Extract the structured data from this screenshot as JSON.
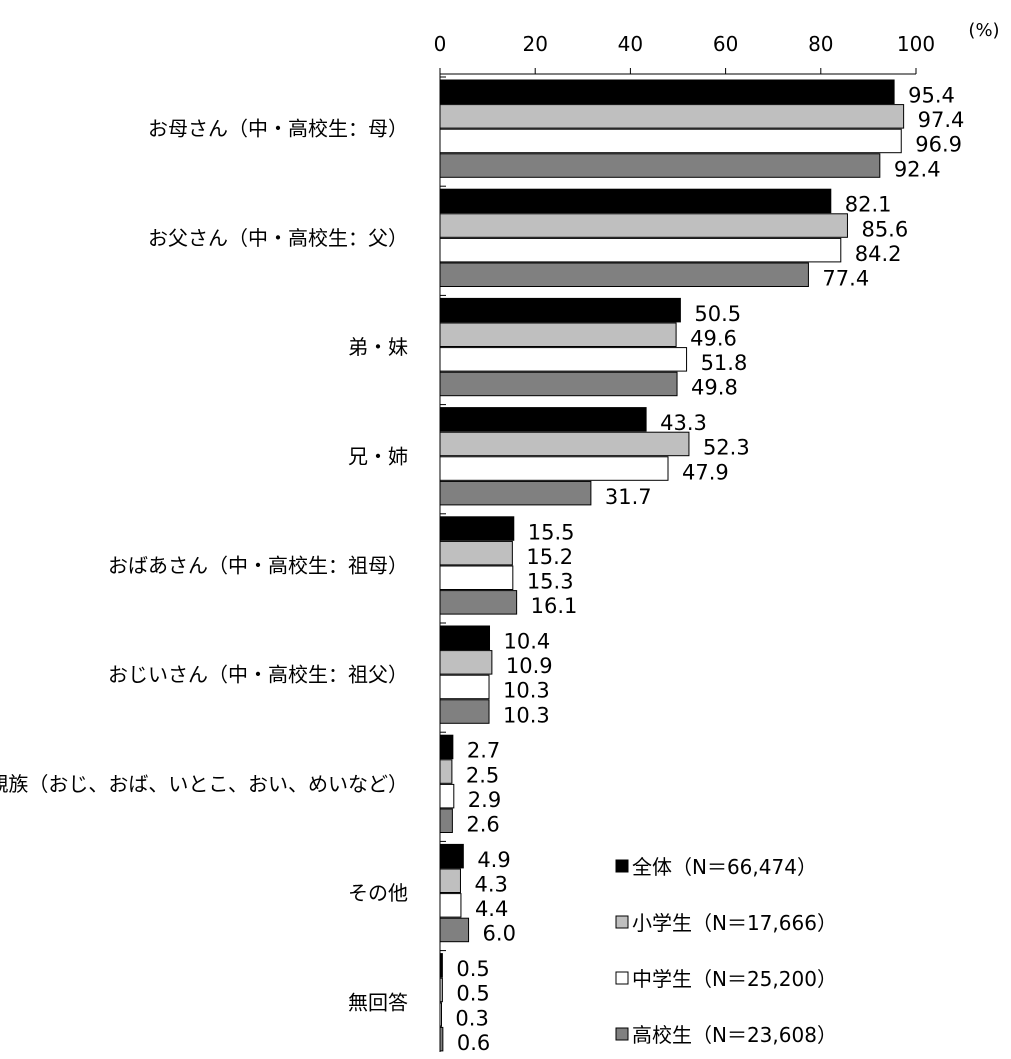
{
  "chart_data": {
    "type": "bar",
    "orientation": "horizontal",
    "unit_label": "(%)",
    "xlim": [
      0,
      100
    ],
    "xticks": [
      "0",
      "20",
      "40",
      "60",
      "80",
      "100"
    ],
    "categories": [
      "お母さん（中・高校生：母）",
      "お父さん（中・高校生：父）",
      "弟・妹",
      "兄・姉",
      "おばあさん（中・高校生：祖母）",
      "おじいさん（中・高校生：祖父）",
      "親族（おじ、おば、いとこ、おい、めいなど）",
      "その他",
      "無回答"
    ],
    "series": [
      {
        "name": "全体（N＝66,474）",
        "color": "#000000",
        "values": [
          95.4,
          82.1,
          50.5,
          43.3,
          15.5,
          10.4,
          2.7,
          4.9,
          0.5
        ]
      },
      {
        "name": "小学生（N＝17,666）",
        "color": "#bfbfbf",
        "values": [
          97.4,
          85.6,
          49.6,
          52.3,
          15.2,
          10.9,
          2.5,
          4.3,
          0.5
        ]
      },
      {
        "name": "中学生（N＝25,200）",
        "color": "#ffffff",
        "values": [
          96.9,
          84.2,
          51.8,
          47.9,
          15.3,
          10.3,
          2.9,
          4.4,
          0.3
        ]
      },
      {
        "name": "高校生（N＝23,608）",
        "color": "#808080",
        "values": [
          92.4,
          77.4,
          49.8,
          31.7,
          16.1,
          10.3,
          2.6,
          6.0,
          0.6
        ]
      }
    ],
    "value_labels": [
      [
        "95.4",
        "97.4",
        "96.9",
        "92.4"
      ],
      [
        "82.1",
        "85.6",
        "84.2",
        "77.4"
      ],
      [
        "50.5",
        "49.6",
        "51.8",
        "49.8"
      ],
      [
        "43.3",
        "52.3",
        "47.9",
        "31.7"
      ],
      [
        "15.5",
        "15.2",
        "15.3",
        "16.1"
      ],
      [
        "10.4",
        "10.9",
        "10.3",
        "10.3"
      ],
      [
        "2.7",
        "2.5",
        "2.9",
        "2.6"
      ],
      [
        "4.9",
        "4.3",
        "4.4",
        "6.0"
      ],
      [
        "0.5",
        "0.5",
        "0.3",
        "0.6"
      ]
    ],
    "legend_position": "bottom-right",
    "grid": false
  }
}
